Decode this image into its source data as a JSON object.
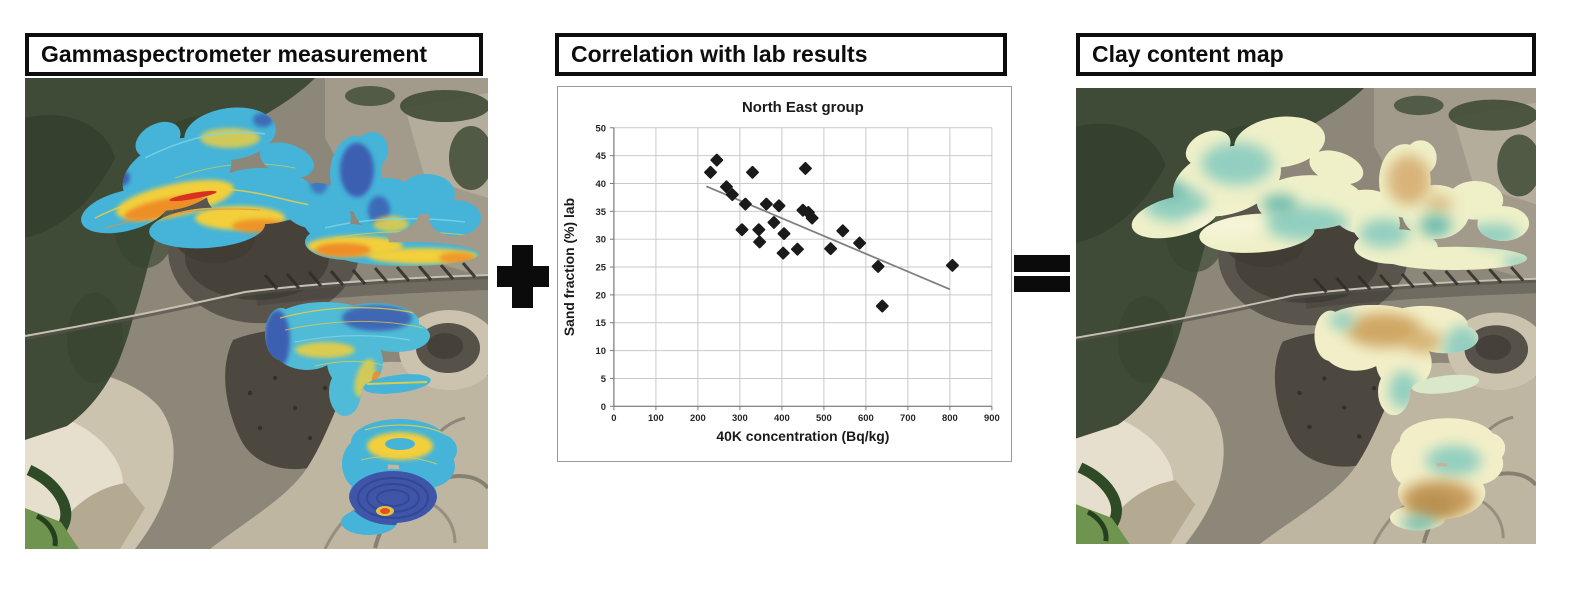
{
  "figure": {
    "background": "#ffffff",
    "panels": [
      {
        "title": "Gammaspectrometer measurement",
        "content": "satellite-map-with-gamma-heatmap-overlay"
      },
      {
        "title": "Correlation with lab results",
        "content": "scatter-chart"
      },
      {
        "title": "Clay content map",
        "content": "satellite-map-with-clay-content-overlay"
      }
    ],
    "operators": {
      "plus": "+",
      "equals": "="
    }
  },
  "chart_data": {
    "type": "scatter",
    "title": "North East group",
    "xlabel": "40K concentration (Bq/kg)",
    "ylabel": "Sand fraction (%) lab",
    "xlim": [
      0,
      900
    ],
    "ylim": [
      0,
      50
    ],
    "x_ticks": [
      0,
      100,
      200,
      300,
      400,
      500,
      600,
      700,
      800,
      900
    ],
    "y_ticks": [
      0,
      5,
      10,
      15,
      20,
      25,
      30,
      35,
      40,
      45,
      50
    ],
    "grid": true,
    "legend": "none",
    "marker": {
      "shape": "diamond",
      "color": "#1a1a1a",
      "size": 11
    },
    "points": [
      [
        230,
        42.0
      ],
      [
        245,
        44.2
      ],
      [
        268,
        39.4
      ],
      [
        282,
        38.0
      ],
      [
        305,
        31.7
      ],
      [
        313,
        36.3
      ],
      [
        330,
        42.0
      ],
      [
        345,
        31.7
      ],
      [
        347,
        29.5
      ],
      [
        363,
        36.3
      ],
      [
        381,
        33.0
      ],
      [
        393,
        36.0
      ],
      [
        403,
        27.5
      ],
      [
        405,
        31.0
      ],
      [
        437,
        28.2
      ],
      [
        450,
        35.2
      ],
      [
        456,
        42.7
      ],
      [
        463,
        34.8
      ],
      [
        472,
        33.8
      ],
      [
        516,
        28.3
      ],
      [
        545,
        31.5
      ],
      [
        585,
        29.3
      ],
      [
        629,
        25.1
      ],
      [
        639,
        18.0
      ],
      [
        806,
        25.3
      ]
    ],
    "trendline": {
      "from": [
        220,
        39.5
      ],
      "to": [
        800,
        21.0
      ],
      "color": "#7f7f7f"
    }
  },
  "colors": {
    "gamma_heatmap_palette": [
      "#3c5fb2",
      "#45b4d8",
      "#f2cf3a",
      "#ee8e28",
      "#d93120"
    ],
    "clay_overlay_palette": [
      "#eff0c8",
      "#93cfc0",
      "#d8b479",
      "#b8904f"
    ],
    "title_box_border": "#0d0d0d"
  }
}
